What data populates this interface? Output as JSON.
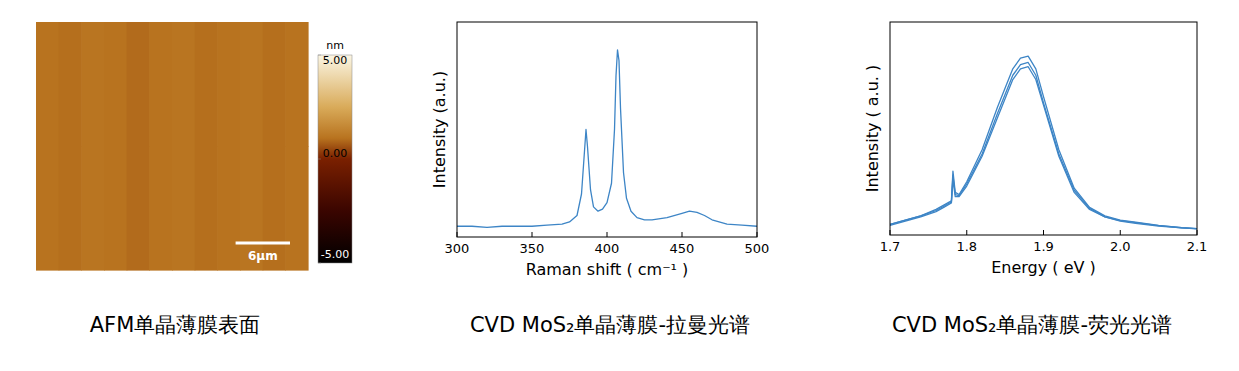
{
  "chart_data": [
    {
      "type": "heatmap",
      "title": "AFM单晶薄膜表面",
      "tick_labels": false,
      "cells": [
        [
          1.0,
          0.95,
          1.05,
          1.0,
          0.9,
          1.0,
          1.05,
          0.95,
          1.0,
          1.05,
          0.95,
          1.0
        ],
        [
          1.0,
          0.95,
          1.05,
          1.0,
          0.9,
          1.0,
          1.05,
          0.95,
          1.0,
          1.05,
          0.95,
          1.0
        ]
      ],
      "colorbar": {
        "label": "nm",
        "range": [
          -5,
          5
        ],
        "ticks": [
          {
            "value": 5,
            "label": "5.00"
          },
          {
            "value": 0,
            "label": "0.00"
          },
          {
            "value": -5,
            "label": "-5.00"
          }
        ]
      },
      "scale_bar": {
        "label": "6μm",
        "value": 6
      },
      "image_width": 30
    },
    {
      "type": "line",
      "title": "CVD MoS₂单晶薄膜-拉曼光谱",
      "x_label": "Raman shift ( cm⁻¹ )",
      "y_label": "Intensity (a.u.)",
      "tick_labels": "x",
      "xlim": [
        300,
        500
      ],
      "xticks": [
        300,
        350,
        400,
        450,
        500
      ],
      "ylim": [
        0,
        100
      ],
      "x": [
        300,
        310,
        320,
        330,
        340,
        350,
        360,
        370,
        375,
        380,
        383,
        385,
        386,
        387,
        389,
        391,
        394,
        397,
        400,
        403,
        405,
        406,
        407,
        408,
        409,
        411,
        413,
        416,
        420,
        425,
        430,
        440,
        450,
        455,
        460,
        465,
        470,
        480,
        490,
        500
      ],
      "series": [
        {
          "color": "#3d85c6",
          "values": [
            5,
            5,
            4.5,
            5,
            5,
            5,
            5.5,
            6,
            7,
            10,
            20,
            40,
            50,
            42,
            22,
            14,
            12,
            13,
            16,
            25,
            50,
            75,
            87,
            82,
            60,
            30,
            18,
            12,
            9,
            8,
            8,
            9,
            11,
            12,
            11.5,
            10,
            8,
            6,
            5.5,
            5
          ]
        }
      ]
    },
    {
      "type": "line",
      "title": "CVD MoS₂单晶薄膜-荧光光谱",
      "x_label": "Energy ( eV )",
      "y_label": "Intensity ( a.u. )",
      "tick_labels": "x",
      "xlim": [
        1.7,
        2.1
      ],
      "xticks": [
        1.7,
        1.8,
        1.9,
        {
          "value": 2,
          "label": "2.0"
        },
        2.1
      ],
      "ylim": [
        0,
        100
      ],
      "x": [
        1.7,
        1.72,
        1.74,
        1.76,
        1.77,
        1.78,
        1.782,
        1.785,
        1.79,
        1.8,
        1.82,
        1.84,
        1.86,
        1.87,
        1.88,
        1.89,
        1.9,
        1.92,
        1.94,
        1.96,
        1.98,
        2.0,
        2.02,
        2.05,
        2.08,
        2.1
      ],
      "series": [
        {
          "color": "#3d85c6",
          "values": [
            5,
            7,
            9,
            12,
            14,
            16,
            30,
            20,
            19,
            25,
            40,
            60,
            78,
            83,
            84,
            78,
            65,
            40,
            22,
            13,
            9,
            7,
            6,
            4.5,
            3.5,
            3
          ]
        },
        {
          "color": "#3d85c6",
          "values": [
            5,
            7,
            9,
            11.5,
            13.5,
            15.5,
            28,
            19,
            18.5,
            24,
            38,
            57,
            75,
            80,
            81,
            75,
            62,
            38,
            21,
            12.5,
            8.5,
            6.8,
            5.8,
            4.4,
            3.4,
            3
          ]
        },
        {
          "color": "#3d85c6",
          "values": [
            4.5,
            6.5,
            8.5,
            11,
            13,
            15,
            26,
            18,
            18,
            23,
            37,
            55,
            73,
            78,
            79,
            73,
            61,
            37,
            20,
            12,
            8.5,
            6.5,
            5.5,
            4.2,
            3.3,
            2.9
          ]
        }
      ]
    }
  ]
}
